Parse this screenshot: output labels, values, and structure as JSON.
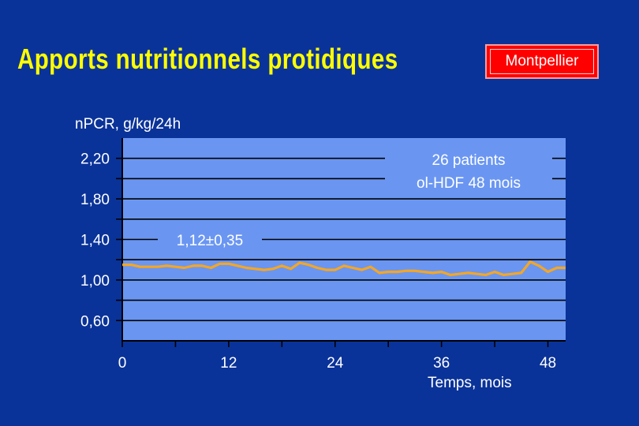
{
  "header": {
    "title": "Apports nutritionnels protidiques",
    "badge": "Montpellier"
  },
  "colors": {
    "background": "#0a3399",
    "plot_bg": "#6a96f2",
    "title": "#ffff00",
    "badge": "#ff0000",
    "series": "#f5a623",
    "grid": "#000000",
    "text": "#ffffff"
  },
  "chart_data": {
    "type": "line",
    "title": "",
    "ylabel": "nPCR, g/kg/24h",
    "xlabel": "Temps, mois",
    "xlim": [
      0,
      50
    ],
    "ylim": [
      0.4,
      2.4
    ],
    "xticks": [
      0,
      12,
      24,
      36,
      48
    ],
    "xtick_labels": [
      "0",
      "12",
      "24",
      "36",
      "48"
    ],
    "yticks": [
      0.6,
      1.0,
      1.4,
      1.8,
      2.2
    ],
    "ytick_labels": [
      "0,60",
      "1,00",
      "1,40",
      "1,80",
      "2,20"
    ],
    "grid": true,
    "annotations": {
      "mean_label": "1,12±0,35",
      "legend_line1": "26 patients",
      "legend_line2": "ol-HDF 48 mois"
    },
    "series": [
      {
        "name": "",
        "x": [
          0,
          1,
          2,
          3,
          4,
          5,
          6,
          7,
          8,
          9,
          10,
          11,
          12,
          13,
          14,
          15,
          16,
          17,
          18,
          19,
          20,
          21,
          22,
          23,
          24,
          25,
          26,
          27,
          28,
          29,
          30,
          31,
          32,
          33,
          34,
          35,
          36,
          37,
          38,
          39,
          40,
          41,
          42,
          43,
          44,
          45,
          46,
          47,
          48,
          49,
          50
        ],
        "values": [
          1.15,
          1.15,
          1.13,
          1.13,
          1.13,
          1.14,
          1.13,
          1.12,
          1.14,
          1.14,
          1.12,
          1.16,
          1.16,
          1.14,
          1.12,
          1.11,
          1.1,
          1.11,
          1.14,
          1.11,
          1.17,
          1.15,
          1.12,
          1.1,
          1.1,
          1.14,
          1.12,
          1.1,
          1.13,
          1.07,
          1.08,
          1.08,
          1.09,
          1.09,
          1.08,
          1.07,
          1.08,
          1.05,
          1.06,
          1.07,
          1.06,
          1.05,
          1.08,
          1.05,
          1.06,
          1.07,
          1.18,
          1.14,
          1.08,
          1.12,
          1.12
        ]
      }
    ]
  }
}
